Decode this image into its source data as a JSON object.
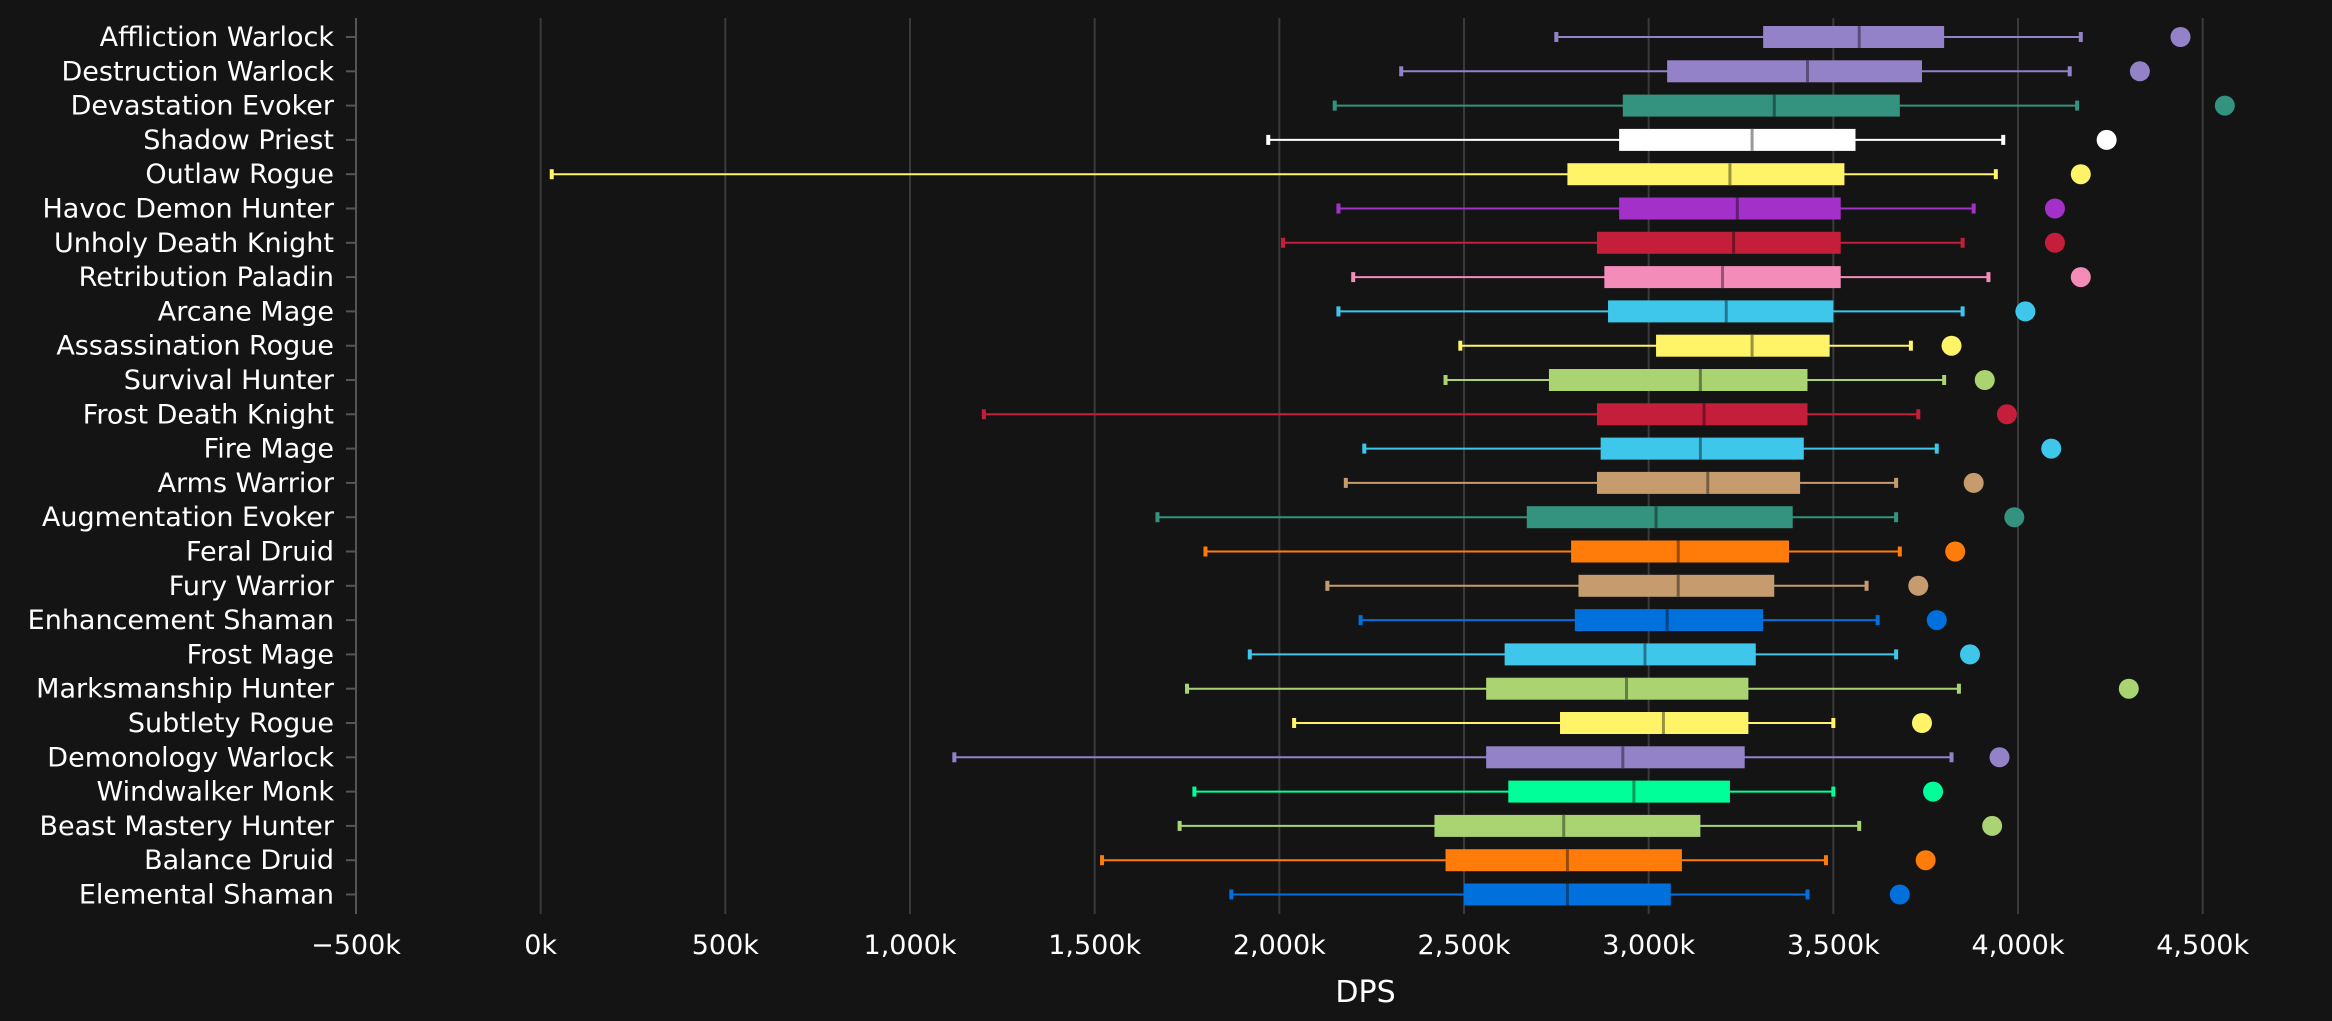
{
  "chart_data": {
    "type": "boxplot",
    "title": "",
    "xlabel": "DPS",
    "ylabel": "",
    "xlim": [
      -500,
      4750
    ],
    "x_ticks": [
      -500,
      0,
      500,
      1000,
      1500,
      2000,
      2500,
      3000,
      3500,
      4000,
      4500
    ],
    "x_tick_labels": [
      "−500k",
      "0k",
      "500k",
      "1,000k",
      "1,500k",
      "2,000k",
      "2,500k",
      "3,000k",
      "3,500k",
      "4,000k",
      "4,500k"
    ],
    "grid": "vertical",
    "units": "thousand DPS",
    "series": [
      {
        "name": "Affliction Warlock",
        "color": "#9482c9",
        "min": 2750,
        "q1": 3310,
        "median": 3570,
        "q3": 3800,
        "max": 4170,
        "outlier": 4440
      },
      {
        "name": "Destruction Warlock",
        "color": "#9482c9",
        "min": 2330,
        "q1": 3050,
        "median": 3430,
        "q3": 3740,
        "max": 4140,
        "outlier": 4330
      },
      {
        "name": "Devastation Evoker",
        "color": "#33937f",
        "min": 2150,
        "q1": 2930,
        "median": 3340,
        "q3": 3680,
        "max": 4160,
        "outlier": 4560
      },
      {
        "name": "Shadow Priest",
        "color": "#ffffff",
        "min": 1970,
        "q1": 2920,
        "median": 3280,
        "q3": 3560,
        "max": 3960,
        "outlier": 4240
      },
      {
        "name": "Outlaw Rogue",
        "color": "#fff468",
        "min": 30,
        "q1": 2780,
        "median": 3220,
        "q3": 3530,
        "max": 3940,
        "outlier": 4170
      },
      {
        "name": "Havoc Demon Hunter",
        "color": "#a330c9",
        "min": 2160,
        "q1": 2920,
        "median": 3240,
        "q3": 3520,
        "max": 3880,
        "outlier": 4100
      },
      {
        "name": "Unholy Death Knight",
        "color": "#c41e3a",
        "min": 2010,
        "q1": 2860,
        "median": 3230,
        "q3": 3520,
        "max": 3850,
        "outlier": 4100
      },
      {
        "name": "Retribution Paladin",
        "color": "#f48cba",
        "min": 2200,
        "q1": 2880,
        "median": 3200,
        "q3": 3520,
        "max": 3920,
        "outlier": 4170
      },
      {
        "name": "Arcane Mage",
        "color": "#3fc7eb",
        "min": 2160,
        "q1": 2890,
        "median": 3210,
        "q3": 3500,
        "max": 3850,
        "outlier": 4020
      },
      {
        "name": "Assassination Rogue",
        "color": "#fff468",
        "min": 2490,
        "q1": 3020,
        "median": 3280,
        "q3": 3490,
        "max": 3710,
        "outlier": 3820
      },
      {
        "name": "Survival Hunter",
        "color": "#aad372",
        "min": 2450,
        "q1": 2730,
        "median": 3140,
        "q3": 3430,
        "max": 3800,
        "outlier": 3910
      },
      {
        "name": "Frost Death Knight",
        "color": "#c41e3a",
        "min": 1200,
        "q1": 2860,
        "median": 3150,
        "q3": 3430,
        "max": 3730,
        "outlier": 3970
      },
      {
        "name": "Fire Mage",
        "color": "#3fc7eb",
        "min": 2230,
        "q1": 2870,
        "median": 3140,
        "q3": 3420,
        "max": 3780,
        "outlier": 4090
      },
      {
        "name": "Arms Warrior",
        "color": "#c69b6d",
        "min": 2180,
        "q1": 2860,
        "median": 3160,
        "q3": 3410,
        "max": 3670,
        "outlier": 3880
      },
      {
        "name": "Augmentation Evoker",
        "color": "#33937f",
        "min": 1670,
        "q1": 2670,
        "median": 3020,
        "q3": 3390,
        "max": 3670,
        "outlier": 3990
      },
      {
        "name": "Feral Druid",
        "color": "#ff7c0a",
        "min": 1800,
        "q1": 2790,
        "median": 3080,
        "q3": 3380,
        "max": 3680,
        "outlier": 3830
      },
      {
        "name": "Fury Warrior",
        "color": "#c69b6d",
        "min": 2130,
        "q1": 2810,
        "median": 3080,
        "q3": 3340,
        "max": 3590,
        "outlier": 3730
      },
      {
        "name": "Enhancement Shaman",
        "color": "#0070dd",
        "min": 2220,
        "q1": 2800,
        "median": 3050,
        "q3": 3310,
        "max": 3620,
        "outlier": 3780
      },
      {
        "name": "Frost Mage",
        "color": "#3fc7eb",
        "min": 1920,
        "q1": 2610,
        "median": 2990,
        "q3": 3290,
        "max": 3670,
        "outlier": 3870
      },
      {
        "name": "Marksmanship Hunter",
        "color": "#aad372",
        "min": 1750,
        "q1": 2560,
        "median": 2940,
        "q3": 3270,
        "max": 3840,
        "outlier": 4300
      },
      {
        "name": "Subtlety Rogue",
        "color": "#fff468",
        "min": 2040,
        "q1": 2760,
        "median": 3040,
        "q3": 3270,
        "max": 3500,
        "outlier": 3740
      },
      {
        "name": "Demonology Warlock",
        "color": "#9482c9",
        "min": 1120,
        "q1": 2560,
        "median": 2930,
        "q3": 3260,
        "max": 3820,
        "outlier": 3950
      },
      {
        "name": "Windwalker Monk",
        "color": "#00ff98",
        "min": 1770,
        "q1": 2620,
        "median": 2960,
        "q3": 3220,
        "max": 3500,
        "outlier": 3770
      },
      {
        "name": "Beast Mastery Hunter",
        "color": "#aad372",
        "min": 1730,
        "q1": 2420,
        "median": 2770,
        "q3": 3140,
        "max": 3570,
        "outlier": 3930
      },
      {
        "name": "Balance Druid",
        "color": "#ff7c0a",
        "min": 1520,
        "q1": 2450,
        "median": 2780,
        "q3": 3090,
        "max": 3480,
        "outlier": 3750
      },
      {
        "name": "Elemental Shaman",
        "color": "#0070dd",
        "min": 1870,
        "q1": 2500,
        "median": 2780,
        "q3": 3060,
        "max": 3430,
        "outlier": 3680
      }
    ]
  }
}
